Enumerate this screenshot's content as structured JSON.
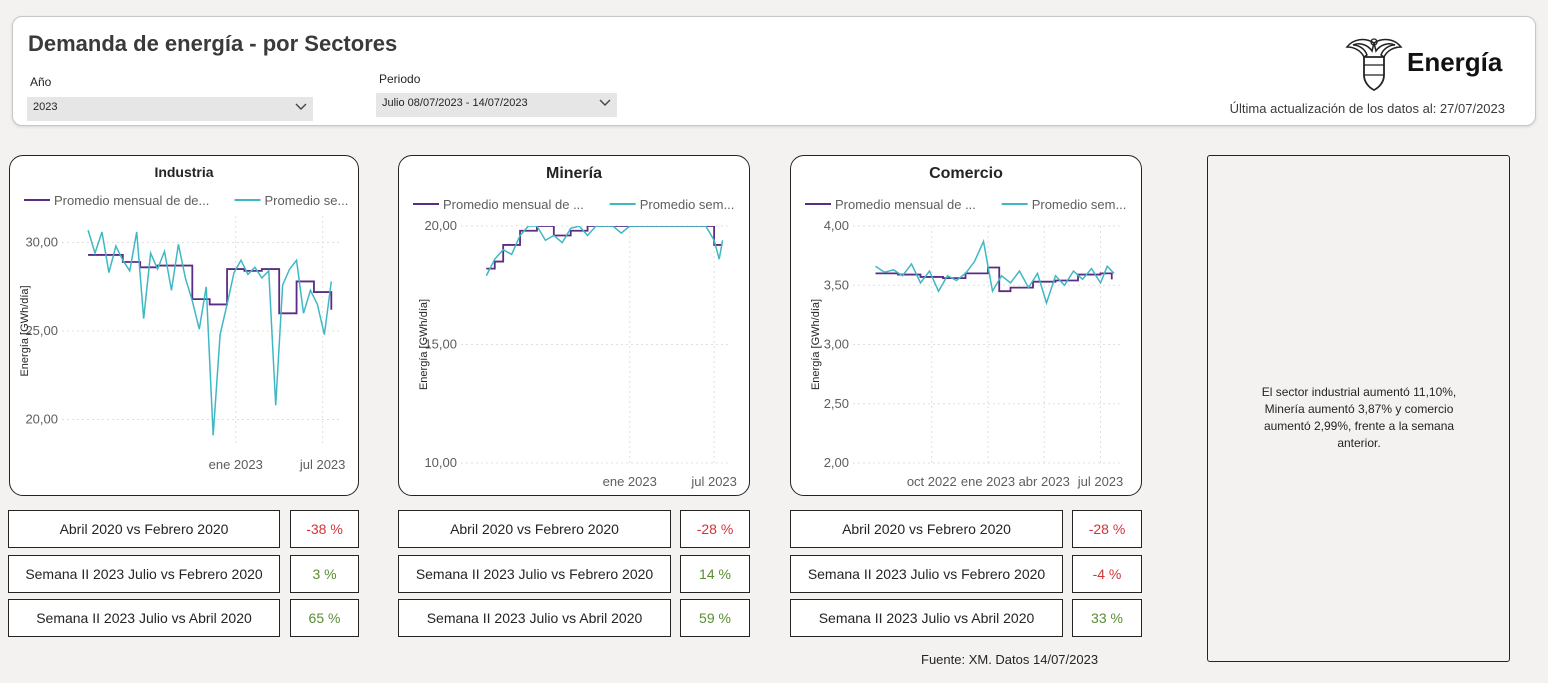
{
  "header": {
    "title": "Demanda de energía - por Sectores",
    "year_label": "Año",
    "year_value": "2023",
    "period_label": "Periodo",
    "period_value": "Julio 08/07/2023 - 14/07/2023",
    "logo_text": "Energía",
    "update_text": "Última actualización de los datos al: 27/07/2023"
  },
  "icons": {
    "dropdown": "chevron-down-icon",
    "logo": "coat-of-arms-icon"
  },
  "colors": {
    "monthly": "#5b2c83",
    "weekly": "#3fb8c4",
    "negative": "#d13438",
    "positive": "#5b8c32"
  },
  "chart_data": [
    {
      "type": "line",
      "title": "Industria",
      "ylabel": "Energía [GWh/día]",
      "ylim": [
        18.5,
        31.5
      ],
      "yticks": [
        20,
        25,
        30
      ],
      "ytick_labels": [
        "20,00",
        "25,00",
        "30,00"
      ],
      "xticks": [
        2022.0,
        2022.5
      ],
      "xtick_labels": [
        "ene 2023",
        "jul 2023"
      ],
      "xlim": [
        2021.0,
        2022.6
      ],
      "legend": [
        "Promedio mensual de de...",
        "Promedio se..."
      ],
      "series": [
        {
          "name": "Promedio mensual de de...",
          "x": [
            2021.15,
            2021.25,
            2021.35,
            2021.45,
            2021.55,
            2021.65,
            2021.75,
            2021.85,
            2021.95,
            2022.05,
            2022.15,
            2022.25,
            2022.35,
            2022.45,
            2022.55
          ],
          "values": [
            29.3,
            29.3,
            28.9,
            28.6,
            28.7,
            28.7,
            26.8,
            26.5,
            28.5,
            28.4,
            28.5,
            26.0,
            27.8,
            27.2,
            26.2
          ]
        },
        {
          "name": "Promedio se...",
          "x": [
            2021.15,
            2021.19,
            2021.23,
            2021.27,
            2021.31,
            2021.35,
            2021.39,
            2021.43,
            2021.47,
            2021.51,
            2021.55,
            2021.59,
            2021.63,
            2021.67,
            2021.71,
            2021.75,
            2021.79,
            2021.83,
            2021.87,
            2021.91,
            2021.95,
            2021.99,
            2022.03,
            2022.07,
            2022.11,
            2022.15,
            2022.19,
            2022.23,
            2022.27,
            2022.31,
            2022.35,
            2022.39,
            2022.43,
            2022.47,
            2022.51,
            2022.55
          ],
          "values": [
            30.7,
            29.4,
            30.6,
            28.3,
            29.8,
            29.0,
            28.4,
            30.6,
            25.7,
            29.4,
            28.5,
            29.5,
            27.3,
            29.9,
            28.0,
            26.7,
            25.1,
            27.5,
            19.1,
            24.8,
            26.5,
            28.3,
            29.0,
            28.2,
            28.6,
            28.0,
            28.4,
            20.8,
            27.6,
            28.5,
            29.0,
            26.0,
            27.3,
            26.5,
            24.8,
            27.8
          ]
        }
      ]
    },
    {
      "type": "line",
      "title": "Minería",
      "ylabel": "Energía [GWh/día]",
      "ylim": [
        10.0,
        20.0
      ],
      "yticks": [
        10,
        15,
        20
      ],
      "ytick_labels": [
        "10,00",
        "15,00",
        "20,00"
      ],
      "xticks": [
        2022.0,
        2022.5
      ],
      "xtick_labels": [
        "ene 2023",
        "jul 2023"
      ],
      "xlim": [
        2021.0,
        2022.6
      ],
      "legend": [
        "Promedio mensual de ...",
        "Promedio sem..."
      ],
      "series": [
        {
          "name": "Promedio mensual de ...",
          "x": [
            2021.15,
            2021.2,
            2021.25,
            2021.3,
            2021.35,
            2021.45,
            2021.55,
            2021.65,
            2021.75,
            2021.85,
            2021.95,
            2022.05,
            2022.15,
            2022.25,
            2022.35,
            2022.45,
            2022.5,
            2022.55
          ],
          "values": [
            18.2,
            18.5,
            19.2,
            19.2,
            19.8,
            20.0,
            19.6,
            19.8,
            20.0,
            20.0,
            20.0,
            20.0,
            20.0,
            20.0,
            20.0,
            20.0,
            19.2,
            19.2
          ]
        },
        {
          "name": "Promedio sem...",
          "x": [
            2021.15,
            2021.2,
            2021.25,
            2021.3,
            2021.35,
            2021.4,
            2021.45,
            2021.5,
            2021.55,
            2021.6,
            2021.65,
            2021.7,
            2021.75,
            2021.8,
            2021.85,
            2021.9,
            2021.95,
            2022.0,
            2022.05,
            2022.1,
            2022.15,
            2022.2,
            2022.25,
            2022.3,
            2022.35,
            2022.4,
            2022.45,
            2022.5,
            2022.53,
            2022.55
          ],
          "values": [
            17.9,
            18.6,
            19.0,
            18.8,
            19.6,
            20.0,
            20.0,
            19.4,
            19.6,
            19.3,
            19.9,
            20.0,
            19.6,
            20.0,
            20.0,
            20.0,
            19.7,
            20.0,
            20.0,
            20.0,
            20.0,
            20.0,
            20.0,
            20.0,
            20.0,
            20.0,
            20.0,
            19.4,
            18.6,
            19.4
          ]
        }
      ]
    },
    {
      "type": "line",
      "title": "Comercio",
      "ylabel": "Energía [GWh/día]",
      "ylim": [
        2.0,
        4.0
      ],
      "yticks": [
        2.0,
        2.5,
        3.0,
        3.5,
        4.0
      ],
      "ytick_labels": [
        "2,00",
        "2,50",
        "3,00",
        "3,50",
        "4,00"
      ],
      "xticks": [
        2021.75,
        2022.0,
        2022.25,
        2022.5
      ],
      "xtick_labels": [
        "oct 2022",
        "ene 2023",
        "abr 2023",
        "jul 2023"
      ],
      "xlim": [
        2021.4,
        2022.6
      ],
      "legend": [
        "Promedio mensual de ...",
        "Promedio sem..."
      ],
      "series": [
        {
          "name": "Promedio mensual de ...",
          "x": [
            2021.5,
            2021.6,
            2021.7,
            2021.8,
            2021.9,
            2022.0,
            2022.05,
            2022.1,
            2022.2,
            2022.3,
            2022.4,
            2022.5,
            2022.55
          ],
          "values": [
            3.6,
            3.59,
            3.57,
            3.56,
            3.6,
            3.65,
            3.45,
            3.48,
            3.53,
            3.54,
            3.59,
            3.6,
            3.55
          ]
        },
        {
          "name": "Promedio sem...",
          "x": [
            2021.5,
            2021.54,
            2021.58,
            2021.62,
            2021.66,
            2021.7,
            2021.74,
            2021.78,
            2021.82,
            2021.86,
            2021.9,
            2021.94,
            2021.98,
            2022.02,
            2022.06,
            2022.1,
            2022.14,
            2022.18,
            2022.22,
            2022.26,
            2022.3,
            2022.34,
            2022.38,
            2022.42,
            2022.46,
            2022.5,
            2022.53,
            2022.56
          ],
          "values": [
            3.66,
            3.61,
            3.63,
            3.58,
            3.68,
            3.52,
            3.62,
            3.45,
            3.58,
            3.54,
            3.6,
            3.7,
            3.87,
            3.45,
            3.58,
            3.52,
            3.62,
            3.48,
            3.6,
            3.35,
            3.58,
            3.5,
            3.62,
            3.55,
            3.64,
            3.52,
            3.66,
            3.6
          ]
        }
      ]
    }
  ],
  "comparisons": [
    {
      "sector": "Industria",
      "rows": [
        {
          "label": "Abril 2020 vs Febrero 2020",
          "value": "-38 %",
          "sign": "neg"
        },
        {
          "label": "Semana II 2023 Julio vs Febrero 2020",
          "value": "3 %",
          "sign": "pos"
        },
        {
          "label": "Semana II 2023 Julio vs Abril 2020",
          "value": "65 %",
          "sign": "pos"
        }
      ]
    },
    {
      "sector": "Minería",
      "rows": [
        {
          "label": "Abril 2020 vs Febrero 2020",
          "value": "-28 %",
          "sign": "neg"
        },
        {
          "label": "Semana II 2023 Julio vs Febrero 2020",
          "value": "14 %",
          "sign": "pos"
        },
        {
          "label": "Semana II 2023 Julio vs Abril 2020",
          "value": "59 %",
          "sign": "pos"
        }
      ]
    },
    {
      "sector": "Comercio",
      "rows": [
        {
          "label": "Abril 2020 vs Febrero 2020",
          "value": "-28 %",
          "sign": "neg"
        },
        {
          "label": "Semana II 2023 Julio vs Febrero 2020",
          "value": "-4 %",
          "sign": "neg"
        },
        {
          "label": "Semana II 2023 Julio vs Abril 2020",
          "value": "33 %",
          "sign": "pos"
        }
      ]
    }
  ],
  "note": {
    "text": "El sector industrial  aumentó  11,10%, Minería aumentó  3,87% y comercio aumentó  2,99%, frente a la semana anterior."
  },
  "footer": {
    "source": "Fuente: XM. Datos 14/07/2023"
  }
}
